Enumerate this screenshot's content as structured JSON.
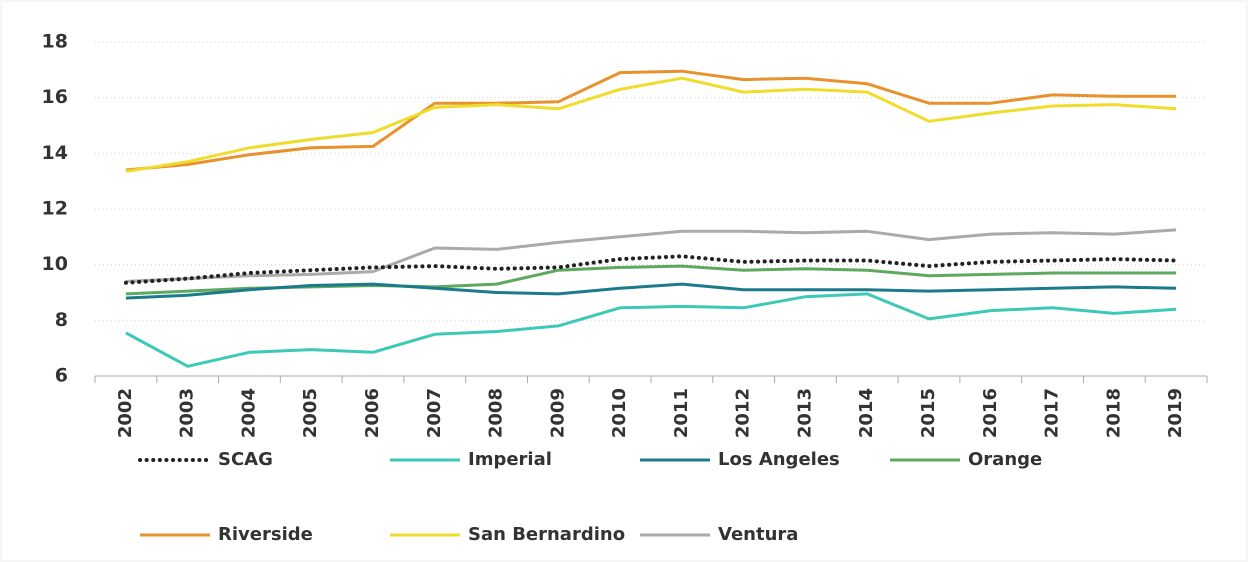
{
  "chart_data": {
    "type": "line",
    "categories": [
      "2002",
      "2003",
      "2004",
      "2005",
      "2006",
      "2007",
      "2008",
      "2009",
      "2010",
      "2011",
      "2012",
      "2013",
      "2014",
      "2015",
      "2016",
      "2017",
      "2018",
      "2019"
    ],
    "series": [
      {
        "name": "SCAG",
        "color": "#222222",
        "dash": "dotted",
        "values": [
          9.35,
          9.5,
          9.7,
          9.8,
          9.9,
          9.95,
          9.85,
          9.9,
          10.2,
          10.3,
          10.1,
          10.15,
          10.15,
          9.95,
          10.1,
          10.15,
          10.2,
          10.15
        ]
      },
      {
        "name": "Imperial",
        "color": "#3cc9b8",
        "values": [
          7.55,
          6.35,
          6.85,
          6.95,
          6.85,
          7.5,
          7.6,
          7.8,
          8.45,
          8.5,
          8.45,
          8.85,
          8.95,
          8.05,
          8.35,
          8.45,
          8.25,
          8.4
        ]
      },
      {
        "name": "Los Angeles",
        "color": "#1c7a8c",
        "values": [
          8.8,
          8.9,
          9.1,
          9.25,
          9.3,
          9.15,
          9.0,
          8.95,
          9.15,
          9.3,
          9.1,
          9.1,
          9.1,
          9.05,
          9.1,
          9.15,
          9.2,
          9.15
        ]
      },
      {
        "name": "Orange",
        "color": "#5ea95e",
        "values": [
          8.95,
          9.05,
          9.15,
          9.2,
          9.25,
          9.2,
          9.3,
          9.8,
          9.9,
          9.95,
          9.8,
          9.85,
          9.8,
          9.6,
          9.65,
          9.7,
          9.7,
          9.7
        ]
      },
      {
        "name": "Riverside",
        "color": "#e8922d",
        "values": [
          13.4,
          13.6,
          13.95,
          14.2,
          14.25,
          15.8,
          15.8,
          15.85,
          16.9,
          16.95,
          16.65,
          16.7,
          16.5,
          15.8,
          15.8,
          16.1,
          16.05,
          16.05
        ]
      },
      {
        "name": "San Bernardino",
        "color": "#f0dc2a",
        "values": [
          13.35,
          13.7,
          14.2,
          14.5,
          14.75,
          15.65,
          15.75,
          15.6,
          16.3,
          16.7,
          16.2,
          16.3,
          16.2,
          15.15,
          15.45,
          15.7,
          15.75,
          15.6
        ]
      },
      {
        "name": "Ventura",
        "color": "#aaaaaa",
        "values": [
          9.4,
          9.5,
          9.6,
          9.65,
          9.75,
          10.6,
          10.55,
          10.8,
          11.0,
          11.2,
          11.2,
          11.15,
          11.2,
          10.9,
          11.1,
          11.15,
          11.1,
          11.25
        ]
      }
    ],
    "ylim": [
      6,
      18
    ],
    "yticks": [
      6,
      8,
      10,
      12,
      14,
      16,
      18
    ],
    "grid": true,
    "legend": "bottom"
  }
}
